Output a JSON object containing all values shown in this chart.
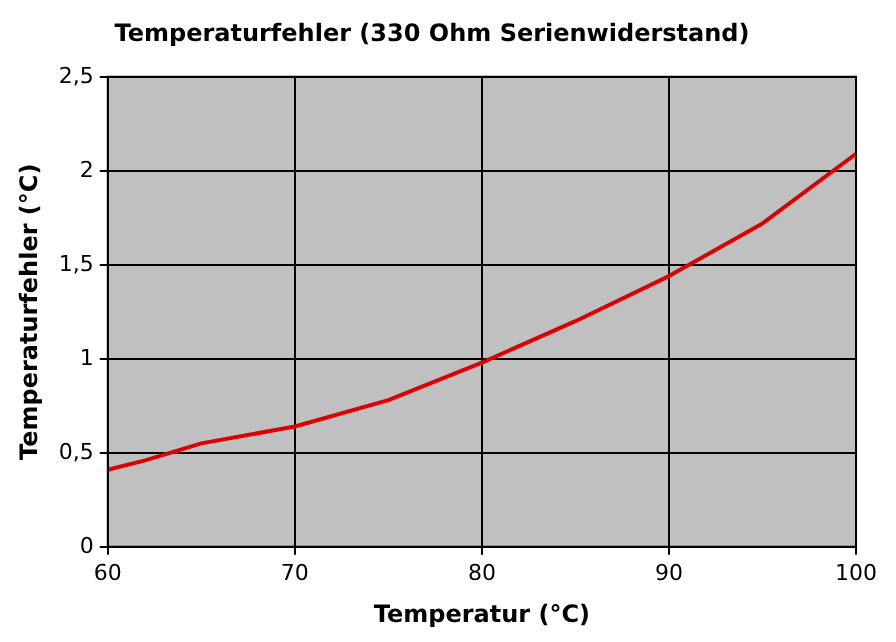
{
  "chart_data": {
    "type": "line",
    "title": "Temperaturfehler (330 Ohm Serienwiderstand)",
    "xlabel": "Temperatur (°C)",
    "ylabel": "Temperaturfehler (°C)",
    "series": [
      {
        "color": "#dd0000",
        "x": [
          60,
          62,
          65,
          70,
          75,
          80,
          85,
          90,
          95,
          100
        ],
        "values": [
          0.41,
          0.46,
          0.55,
          0.64,
          0.78,
          0.98,
          1.2,
          1.44,
          1.72,
          2.09
        ]
      }
    ],
    "xlim": [
      60,
      100
    ],
    "xticks": [
      60,
      70,
      80,
      90,
      100
    ],
    "ylim": [
      0,
      2.5
    ],
    "yticks": [
      0,
      {
        "value": 0.5,
        "label": "0,5"
      },
      1,
      {
        "value": 1.5,
        "label": "1,5"
      },
      2,
      {
        "value": 2.5,
        "label": "2,5"
      }
    ],
    "grid": true,
    "legend": false,
    "marker": "none",
    "line_style": "solid"
  }
}
